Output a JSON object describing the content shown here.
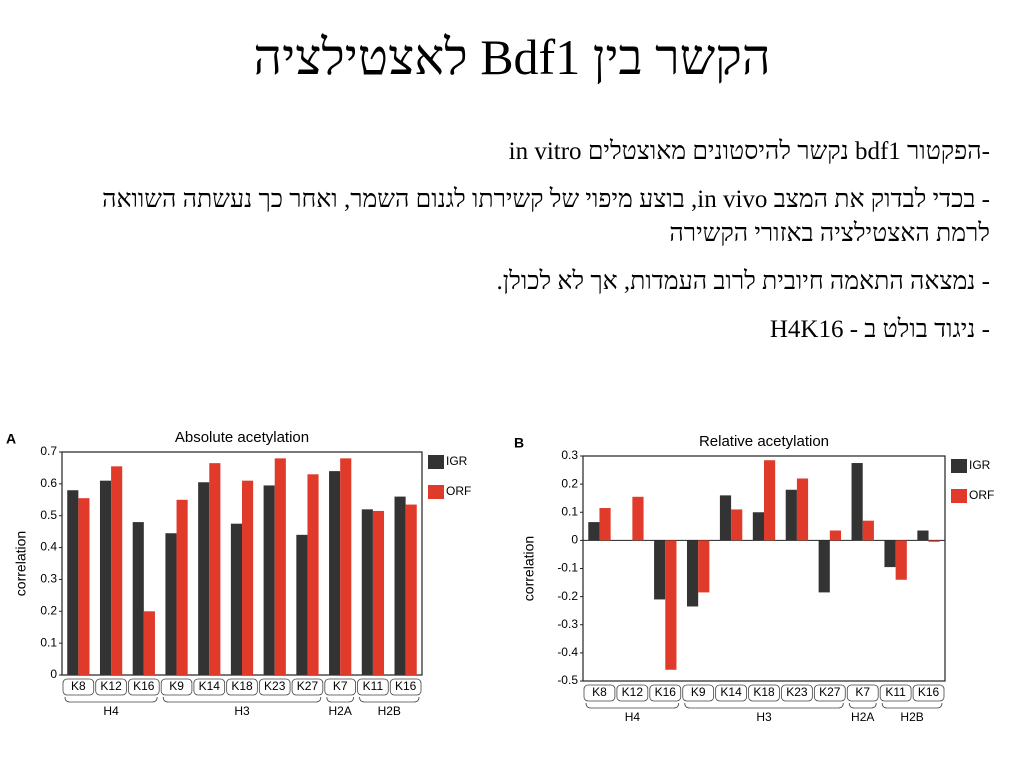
{
  "slide": {
    "title": "הקשר בין Bdf1 לאצטילציה",
    "bullets": [
      "-הפקטור bdf1 נקשר להיסטונים מאוצטלים in vitro",
      "- בכדי לבדוק את המצב in vivo, בוצע מיפוי של קשירתו לגנום השמר, ואחר כך נעשתה השוואה לרמת האצטילציה באזורי הקשירה",
      "- נמצאה התאמה חיובית לרוב העמדות, אך לא לכולן.",
      "- ניגוד בולט ב - H4K16"
    ]
  },
  "chart_data": [
    {
      "type": "bar",
      "panel": "A",
      "title": "Absolute acetylation",
      "y_label": "correlation",
      "categories": [
        "K8",
        "K12",
        "K16",
        "K9",
        "K14",
        "K18",
        "K23",
        "K27",
        "K7",
        "K11",
        "K16"
      ],
      "category_groups": [
        "H4",
        "H4",
        "H4",
        "H3",
        "H3",
        "H3",
        "H3",
        "H3",
        "H2A",
        "H2B",
        "H2B"
      ],
      "series": [
        {
          "name": "IGR",
          "color": "#333333",
          "values": [
            0.58,
            0.61,
            0.48,
            0.445,
            0.605,
            0.475,
            0.595,
            0.44,
            0.64,
            0.52,
            0.56
          ]
        },
        {
          "name": "ORF",
          "color": "#e03a2a",
          "values": [
            0.555,
            0.655,
            0.2,
            0.55,
            0.665,
            0.61,
            0.68,
            0.63,
            0.68,
            0.515,
            0.535
          ]
        }
      ],
      "ylim": [
        0,
        0.7
      ],
      "yticks": [
        0,
        0.1,
        0.2,
        0.3,
        0.4,
        0.5,
        0.6,
        0.7
      ],
      "legend": "right"
    },
    {
      "type": "bar",
      "panel": "B",
      "title": "Relative acetylation",
      "y_label": "correlation",
      "categories": [
        "K8",
        "K12",
        "K16",
        "K9",
        "K14",
        "K18",
        "K23",
        "K27",
        "K7",
        "K11",
        "K16"
      ],
      "category_groups": [
        "H4",
        "H4",
        "H4",
        "H3",
        "H3",
        "H3",
        "H3",
        "H3",
        "H2A",
        "H2B",
        "H2B"
      ],
      "series": [
        {
          "name": "IGR",
          "color": "#333333",
          "values": [
            0.065,
            null,
            -0.21,
            -0.235,
            0.16,
            0.1,
            0.18,
            -0.185,
            0.275,
            -0.095,
            0.035
          ]
        },
        {
          "name": "ORF",
          "color": "#e03a2a",
          "values": [
            0.115,
            0.155,
            -0.46,
            -0.185,
            0.11,
            0.285,
            0.22,
            0.035,
            0.07,
            -0.14,
            -0.005
          ]
        }
      ],
      "ylim": [
        -0.5,
        0.3
      ],
      "yticks": [
        -0.5,
        -0.4,
        -0.3,
        -0.2,
        -0.1,
        0,
        0.1,
        0.2,
        0.3
      ],
      "legend": "right"
    }
  ]
}
